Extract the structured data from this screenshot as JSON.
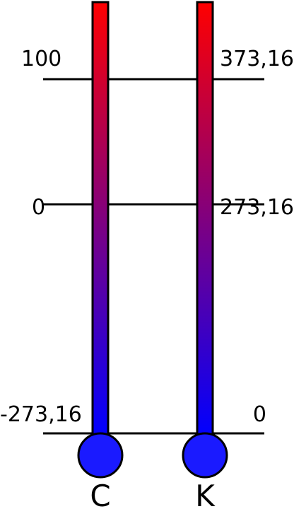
{
  "scale_lines": [
    {
      "celsius_label": "100",
      "kelvin_label": "373,16"
    },
    {
      "celsius_label": "0",
      "kelvin_label": "273,16"
    },
    {
      "celsius_label": "-273,16",
      "kelvin_label": "0"
    }
  ],
  "thermometers": {
    "celsius_name": "C",
    "kelvin_name": "K"
  },
  "colors": {
    "hot": "#ff0000",
    "cold": "#0000ff",
    "bulb": "#1a1aff",
    "line": "#000000"
  }
}
